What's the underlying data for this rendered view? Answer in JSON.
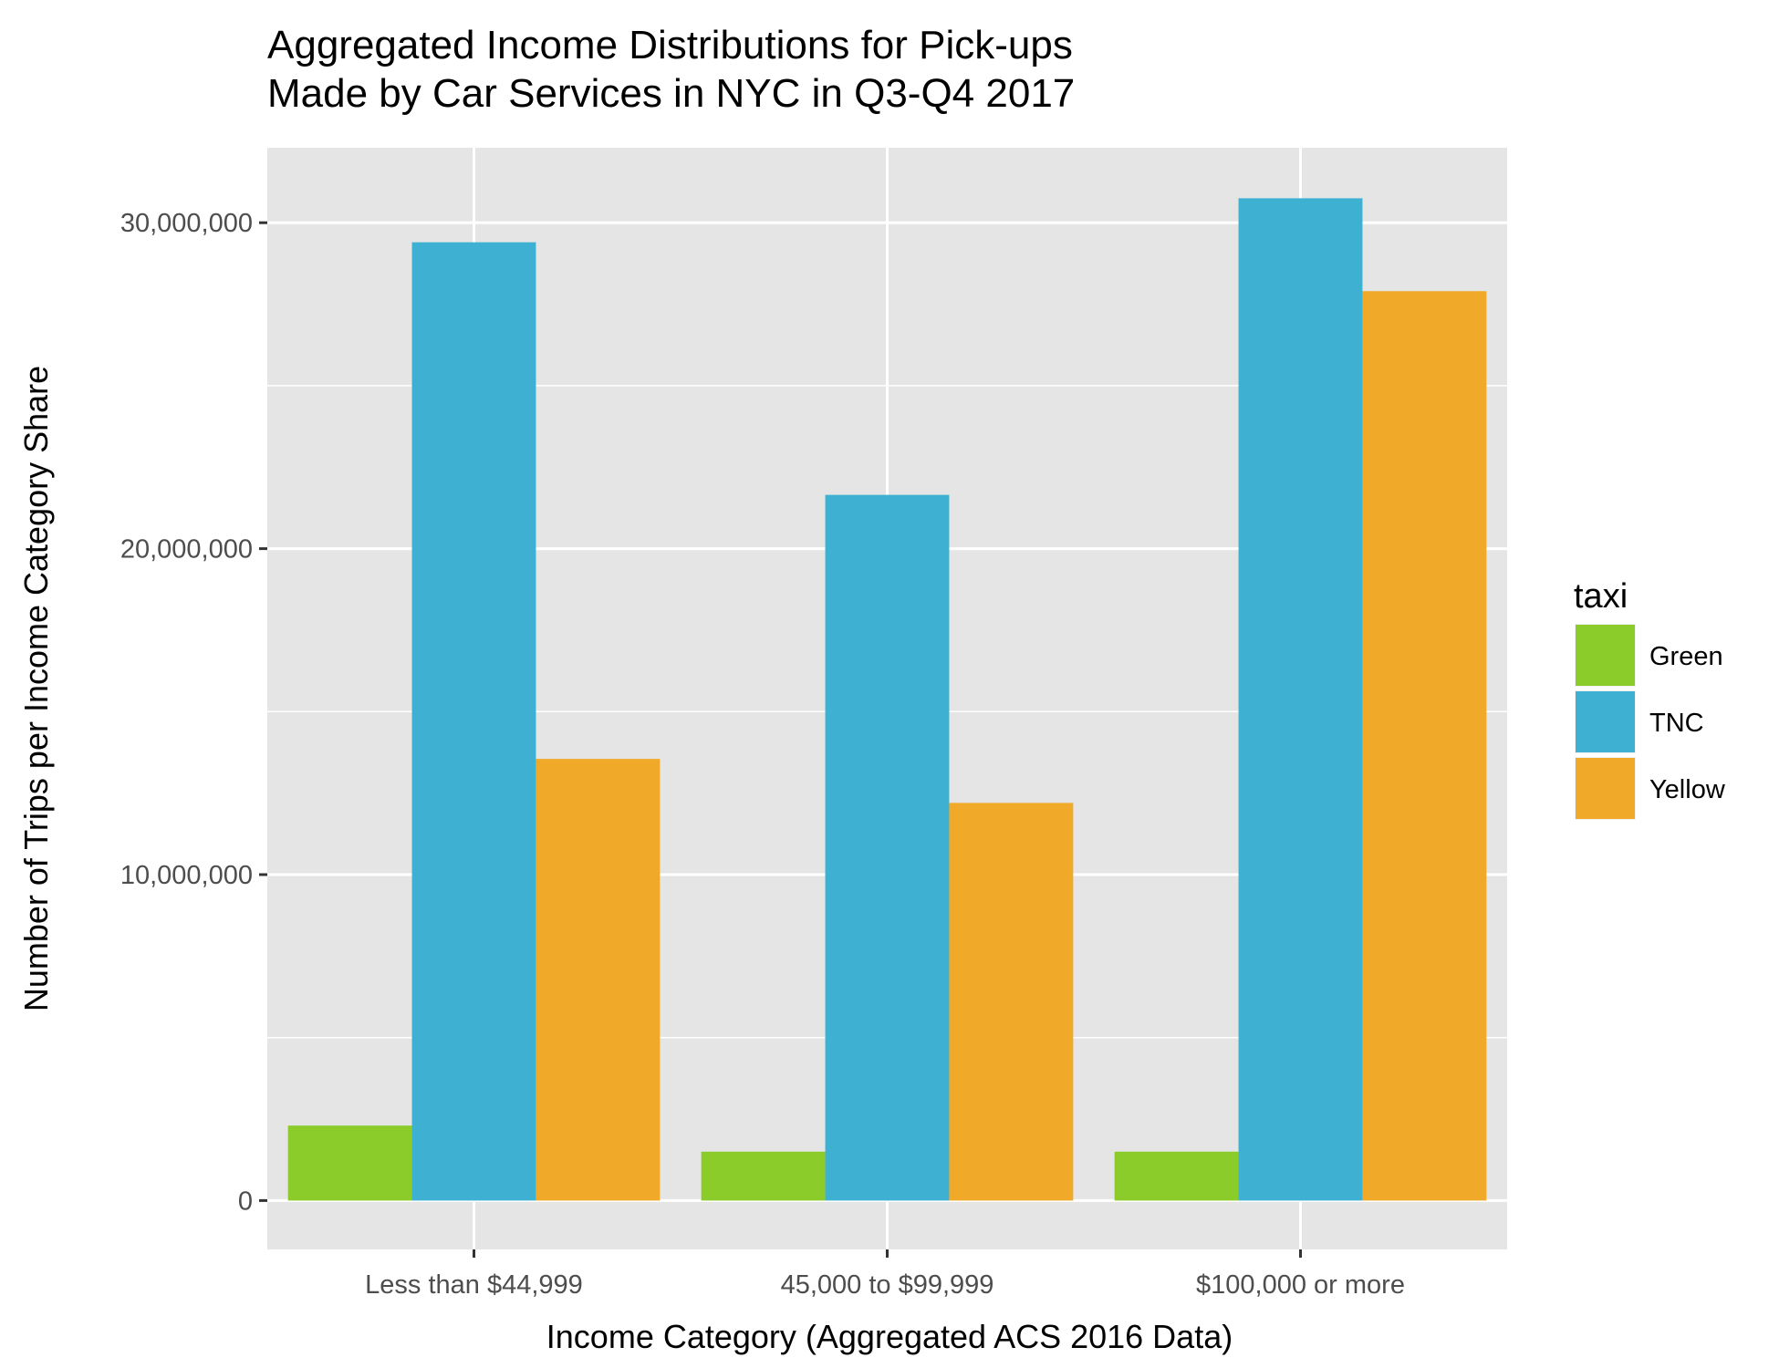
{
  "chart_data": {
    "type": "bar",
    "title_lines": [
      "Aggregated Income Distributions for Pick-ups",
      "Made by Car Services in NYC in Q3-Q4 2017"
    ],
    "xlabel": "Income Category (Aggregated ACS 2016 Data)",
    "ylabel": "Number of Trips per Income Category Share",
    "categories": [
      "Less than $44,999",
      "45,000 to $99,999",
      "$100,000 or more"
    ],
    "series": [
      {
        "name": "Green",
        "color": "#8ccc2a",
        "values": [
          2300000,
          1500000,
          1500000
        ]
      },
      {
        "name": "TNC",
        "color": "#3eb1d3",
        "values": [
          29400000,
          21650000,
          30750000
        ]
      },
      {
        "name": "Yellow",
        "color": "#f1a92a",
        "values": [
          13550000,
          12200000,
          27900000
        ]
      }
    ],
    "ylim": [
      -1500000,
      32300000
    ],
    "y_ticks": [
      0,
      10000000,
      20000000,
      30000000
    ],
    "y_tick_labels": [
      "0",
      "10,000,000",
      "20,000,000",
      "30,000,000"
    ],
    "y_minor_ticks": [
      5000000,
      15000000,
      25000000
    ],
    "grid": true,
    "panel_background": "#e5e5e5",
    "legend": {
      "title": "taxi",
      "position": "right"
    }
  }
}
